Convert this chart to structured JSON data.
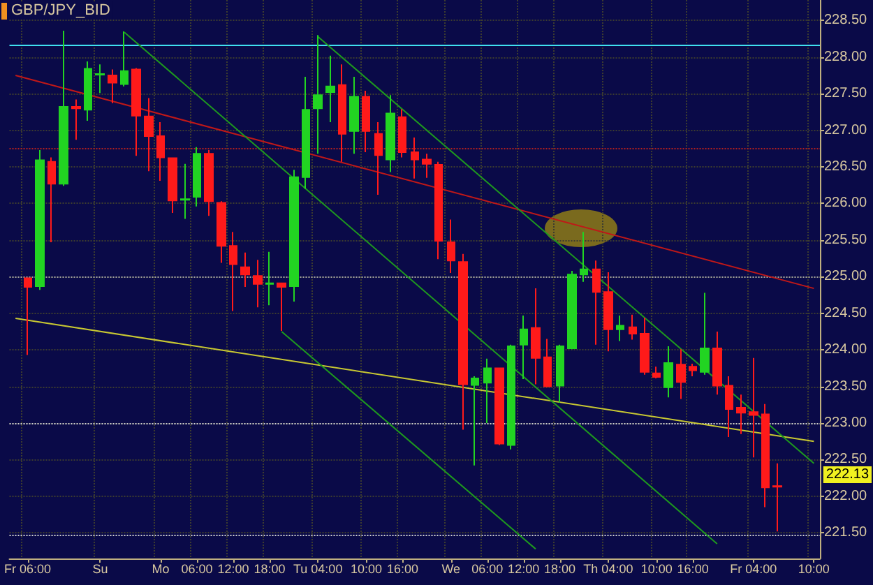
{
  "chart_data": {
    "type": "candlestick",
    "title": "GBP/JPY_BID",
    "categories": [
      null,
      "Fr 06:00",
      null,
      null,
      null,
      null,
      null,
      "Su",
      null,
      null,
      null,
      null,
      "Mo",
      null,
      null,
      "06:00",
      null,
      null,
      "12:00",
      null,
      null,
      "18:00",
      null,
      null,
      null,
      "Tu 04:00",
      null,
      null,
      null,
      "10:00",
      null,
      null,
      "16:00",
      null,
      null,
      null,
      "We",
      null,
      null,
      "06:00",
      null,
      null,
      "12:00",
      null,
      null,
      "18:00",
      null,
      null,
      null,
      "Th 04:00",
      null,
      null,
      null,
      "10:00",
      null,
      null,
      "16:00",
      null,
      null,
      null,
      null,
      "Fr 04:00",
      null,
      null,
      null,
      null,
      "10:00"
    ],
    "ylim": [
      221.15,
      228.78
    ],
    "yticks": [
      {
        "value": 221.5,
        "label": "221.50"
      },
      {
        "value": 222,
        "label": "222.00"
      },
      {
        "value": 222.5,
        "label": "222.50"
      },
      {
        "value": 223,
        "label": "223.00"
      },
      {
        "value": 223.5,
        "label": "223.50"
      },
      {
        "value": 224,
        "label": "224.00"
      },
      {
        "value": 224.5,
        "label": "224.50"
      },
      {
        "value": 225,
        "label": "225.00"
      },
      {
        "value": 225.5,
        "label": "225.50"
      },
      {
        "value": 226,
        "label": "226.00"
      },
      {
        "value": 226.5,
        "label": "226.50"
      },
      {
        "value": 227,
        "label": "227.00"
      },
      {
        "value": 227.5,
        "label": "227.50"
      },
      {
        "value": 228,
        "label": "228.00"
      },
      {
        "value": 228.5,
        "label": "228.50"
      }
    ],
    "grid": true,
    "series": [
      {
        "colors": [
          null,
          "#ff1a1a",
          "#22d422",
          "#ff1a1a",
          "#22d422",
          "#ff1a1a",
          "#22d422",
          "#22d422",
          "#ff1a1a",
          "#22d422",
          "#ff1a1a",
          "#ff1a1a",
          "#ff1a1a",
          "#ff1a1a",
          "#22d422",
          "#22d422",
          "#ff1a1a",
          "#ff1a1a",
          "#ff1a1a",
          "#ff1a1a",
          "#ff1a1a",
          "#22d422",
          "#ff1a1a",
          "#22d422",
          "#22d422",
          "#22d422",
          "#22d422",
          "#ff1a1a",
          "#22d422",
          "#ff1a1a",
          "#ff1a1a",
          "#22d422",
          "#ff1a1a",
          "#ff1a1a",
          "#ff1a1a",
          "#ff1a1a",
          "#ff1a1a",
          "#ff1a1a",
          "#22d422",
          "#22d422",
          "#ff1a1a",
          "#22d422",
          "#22d422",
          "#ff1a1a",
          "#ff1a1a",
          "#22d422",
          "#22d422",
          "#22d422",
          "#ff1a1a",
          "#ff1a1a",
          "#22d422",
          "#ff1a1a",
          "#ff1a1a",
          "#ff1a1a",
          "#22d422",
          "#ff1a1a",
          "#ff1a1a",
          "#22d422",
          "#ff1a1a",
          "#ff1a1a",
          "#ff1a1a",
          "#ff1a1a",
          "#ff1a1a",
          "#ff1a1a",
          null,
          null,
          null
        ],
        "ohlc": [
          null,
          [
            224.98,
            224.98,
            223.93,
            224.86
          ],
          [
            224.87,
            226.73,
            224.82,
            226.59
          ],
          [
            226.57,
            226.63,
            225.47,
            226.27
          ],
          [
            226.27,
            228.36,
            226.24,
            227.32
          ],
          [
            227.32,
            227.42,
            226.87,
            227.3
          ],
          [
            227.28,
            227.94,
            227.13,
            227.84
          ],
          [
            227.76,
            227.9,
            227.51,
            227.77
          ],
          [
            227.75,
            227.83,
            227.37,
            227.65
          ],
          [
            227.63,
            228.35,
            227.6,
            227.81
          ],
          [
            227.83,
            227.85,
            226.65,
            227.2
          ],
          [
            227.19,
            227.44,
            226.44,
            226.92
          ],
          [
            226.92,
            227.11,
            226.31,
            226.63
          ],
          [
            226.62,
            226.62,
            225.87,
            226.04
          ],
          [
            226.05,
            226.54,
            225.79,
            226.06
          ],
          [
            226.09,
            226.77,
            225.96,
            226.68
          ],
          [
            226.68,
            226.73,
            225.83,
            226.03
          ],
          [
            226.01,
            226.03,
            225.19,
            225.42
          ],
          [
            225.42,
            225.61,
            224.53,
            225.17
          ],
          [
            225.13,
            225.33,
            224.86,
            225.03
          ],
          [
            225.01,
            225.23,
            224.58,
            224.9
          ],
          [
            224.9,
            225.34,
            224.61,
            224.91
          ],
          [
            224.91,
            224.91,
            224.26,
            224.86
          ],
          [
            224.87,
            226.46,
            224.66,
            226.36
          ],
          [
            226.36,
            227.73,
            226.2,
            227.28
          ],
          [
            227.3,
            228.3,
            226.68,
            227.48
          ],
          [
            227.52,
            228.02,
            227.11,
            227.6
          ],
          [
            227.62,
            227.9,
            226.57,
            226.95
          ],
          [
            226.99,
            227.73,
            226.68,
            227.46
          ],
          [
            227.46,
            227.54,
            226.7,
            226.99
          ],
          [
            226.95,
            227.11,
            226.12,
            226.66
          ],
          [
            226.6,
            227.48,
            226.43,
            227.23
          ],
          [
            227.18,
            227.29,
            226.63,
            226.7
          ],
          [
            226.7,
            226.9,
            226.34,
            226.6
          ],
          [
            226.6,
            226.68,
            226.35,
            226.54
          ],
          [
            226.53,
            226.57,
            225.24,
            225.49
          ],
          [
            225.47,
            225.78,
            225.05,
            225.22
          ],
          [
            225.2,
            225.31,
            222.91,
            223.53
          ],
          [
            223.52,
            223.64,
            222.42,
            223.61
          ],
          [
            223.55,
            223.88,
            223.0,
            223.75
          ],
          [
            223.75,
            223.75,
            222.7,
            222.72
          ],
          [
            222.7,
            224.07,
            222.64,
            224.05
          ],
          [
            224.07,
            224.47,
            223.6,
            224.28
          ],
          [
            224.3,
            224.84,
            223.53,
            223.89
          ],
          [
            223.9,
            224.15,
            223.49,
            223.5
          ],
          [
            223.51,
            224.07,
            223.28,
            224.05
          ],
          [
            224.02,
            225.08,
            224.01,
            225.03
          ],
          [
            225.03,
            225.61,
            224.93,
            225.1
          ],
          [
            225.1,
            225.22,
            224.07,
            224.79
          ],
          [
            224.79,
            225.06,
            223.98,
            224.28
          ],
          [
            224.28,
            224.47,
            224.12,
            224.33
          ],
          [
            224.31,
            224.48,
            224.14,
            224.22
          ],
          [
            224.22,
            224.44,
            223.66,
            223.7
          ],
          [
            223.68,
            223.77,
            223.61,
            223.63
          ],
          [
            223.49,
            224.05,
            223.35,
            223.82
          ],
          [
            223.8,
            224.01,
            223.33,
            223.56
          ],
          [
            223.77,
            223.81,
            223.64,
            223.72
          ],
          [
            223.7,
            224.78,
            223.66,
            224.02
          ],
          [
            224.02,
            224.25,
            223.39,
            223.51
          ],
          [
            223.51,
            223.64,
            222.81,
            223.19
          ],
          [
            223.21,
            223.39,
            222.85,
            223.14
          ],
          [
            223.15,
            223.89,
            222.53,
            223.11
          ],
          [
            223.12,
            223.26,
            221.85,
            222.12
          ],
          [
            222.14,
            222.45,
            221.52,
            222.13
          ],
          null,
          null,
          null
        ]
      },
      {
        "type": "line",
        "color": "#c01818",
        "values": [
          227.75,
          null,
          null,
          null,
          null,
          null,
          null,
          null,
          null,
          null,
          null,
          null,
          null,
          null,
          null,
          null,
          null,
          null,
          null,
          null,
          null,
          null,
          null,
          null,
          null,
          null,
          null,
          null,
          null,
          null,
          null,
          null,
          null,
          null,
          null,
          null,
          null,
          null,
          null,
          null,
          null,
          null,
          null,
          null,
          null,
          null,
          null,
          null,
          null,
          null,
          null,
          null,
          null,
          null,
          null,
          null,
          null,
          null,
          null,
          null,
          null,
          null,
          null,
          null,
          null,
          null,
          224.84
        ]
      },
      {
        "type": "line",
        "color": "#c8c832",
        "values": [
          224.43,
          null,
          null,
          null,
          null,
          null,
          null,
          null,
          null,
          null,
          null,
          null,
          null,
          null,
          null,
          null,
          null,
          null,
          null,
          null,
          null,
          null,
          null,
          null,
          null,
          null,
          null,
          null,
          null,
          null,
          null,
          null,
          null,
          null,
          null,
          null,
          null,
          null,
          null,
          null,
          null,
          null,
          null,
          null,
          null,
          null,
          null,
          null,
          null,
          null,
          null,
          null,
          null,
          null,
          null,
          null,
          null,
          null,
          null,
          null,
          null,
          null,
          null,
          null,
          null,
          null,
          222.75
        ]
      },
      {
        "type": "line",
        "color": "#1e9a1e",
        "values": [
          null,
          null,
          null,
          null,
          null,
          null,
          null,
          null,
          null,
          228.34,
          null,
          null,
          null,
          null,
          null,
          null,
          null,
          null,
          null,
          null,
          null,
          null,
          null,
          null,
          null,
          null,
          null,
          null,
          null,
          null,
          null,
          null,
          null,
          null,
          null,
          null,
          null,
          null,
          null,
          null,
          null,
          null,
          null,
          null,
          null,
          null,
          null,
          null,
          null,
          null,
          null,
          null,
          null,
          null,
          null,
          null,
          null,
          null,
          221.35,
          null,
          null,
          null,
          null,
          null,
          null,
          null,
          null
        ]
      },
      {
        "type": "line",
        "color": "#1e9a1e",
        "values": [
          null,
          null,
          null,
          null,
          null,
          null,
          null,
          null,
          null,
          null,
          null,
          null,
          null,
          null,
          null,
          null,
          null,
          null,
          null,
          null,
          null,
          null,
          null,
          null,
          null,
          228.28,
          null,
          null,
          null,
          null,
          null,
          null,
          null,
          null,
          null,
          null,
          null,
          null,
          null,
          null,
          null,
          null,
          null,
          null,
          null,
          null,
          null,
          null,
          null,
          null,
          null,
          null,
          null,
          null,
          null,
          null,
          null,
          null,
          null,
          null,
          null,
          null,
          null,
          null,
          null,
          null,
          222.45
        ]
      },
      {
        "type": "line",
        "color": "#1e9a1e",
        "values": [
          null,
          null,
          null,
          null,
          null,
          null,
          null,
          null,
          null,
          null,
          null,
          null,
          null,
          null,
          null,
          null,
          null,
          null,
          null,
          null,
          null,
          null,
          224.25,
          null,
          null,
          null,
          null,
          null,
          null,
          null,
          null,
          null,
          null,
          null,
          null,
          null,
          null,
          null,
          null,
          null,
          null,
          null,
          null,
          221.28,
          null,
          null,
          null,
          null,
          null,
          null,
          null,
          null,
          null,
          null,
          null,
          null,
          null,
          null,
          null,
          null,
          null,
          null,
          null,
          null,
          null,
          null,
          null
        ]
      }
    ],
    "ref_lines": [
      {
        "axis": "y",
        "value": 228.16,
        "color": "#40e0f0",
        "line_style": "solid"
      },
      {
        "axis": "y",
        "value": 226.76,
        "color": "#b02020",
        "line_style": "dotted"
      },
      {
        "axis": "y",
        "value": 225,
        "color": "#a0a0a0",
        "line_style": "dotted"
      },
      {
        "axis": "y",
        "value": 223,
        "color": "#d0d0d0",
        "line_style": "dotted"
      },
      {
        "axis": "y",
        "value": 221.47,
        "color": "#d0d0d0",
        "line_style": "dotted"
      }
    ],
    "annotations": [
      "222.13"
    ]
  }
}
